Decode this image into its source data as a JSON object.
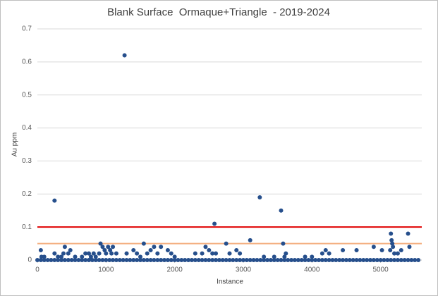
{
  "chart_data": {
    "type": "scatter",
    "title": "Blank Surface  Ormaque+Triangle  - 2019-2024",
    "x_label": "Instance",
    "y_label": "Au ppm",
    "xlim": [
      0,
      5600
    ],
    "xticks": [
      0,
      1000,
      2000,
      3000,
      4000,
      5000
    ],
    "ylim": [
      0,
      0.7
    ],
    "yticks": [
      0,
      0.1,
      0.2,
      0.3,
      0.4,
      0.5,
      0.6,
      0.7
    ],
    "grid": true,
    "reference_lines": [
      {
        "value": 0.1,
        "color": "#e00000"
      },
      {
        "value": 0.05,
        "color": "#f4b183"
      }
    ],
    "series": [
      {
        "color": "#264f8c",
        "x": [
          50,
          60,
          100,
          250,
          250,
          300,
          350,
          380,
          400,
          450,
          480,
          550,
          650,
          700,
          750,
          780,
          820,
          850,
          900,
          920,
          950,
          980,
          1000,
          1030,
          1060,
          1080,
          1100,
          1150,
          1270,
          1300,
          1400,
          1450,
          1500,
          1550,
          1600,
          1650,
          1700,
          1750,
          1800,
          1900,
          1950,
          2000,
          2300,
          2400,
          2450,
          2500,
          2550,
          2580,
          2600,
          2750,
          2800,
          2900,
          2950,
          3100,
          3240,
          3300,
          3450,
          3550,
          3580,
          3600,
          3620,
          3900,
          4000,
          4150,
          4200,
          4250,
          4450,
          4650,
          4900,
          5020,
          5150,
          5160,
          5170,
          5180,
          5140,
          5200,
          5250,
          5300,
          5400,
          5420,
          0,
          50,
          100,
          150,
          200,
          250,
          300,
          350,
          400,
          450,
          500,
          550,
          600,
          650,
          700,
          750,
          800,
          850,
          900,
          950,
          1000,
          1050,
          1100,
          1150,
          1200,
          1250,
          1300,
          1350,
          1400,
          1450,
          1500,
          1550,
          1600,
          1650,
          1700,
          1750,
          1800,
          1850,
          1900,
          1950,
          2000,
          2050,
          2100,
          2150,
          2200,
          2250,
          2300,
          2350,
          2400,
          2450,
          2500,
          2550,
          2600,
          2650,
          2700,
          2750,
          2800,
          2850,
          2900,
          2950,
          3000,
          3050,
          3100,
          3150,
          3200,
          3250,
          3300,
          3350,
          3400,
          3450,
          3500,
          3550,
          3600,
          3650,
          3700,
          3750,
          3800,
          3850,
          3900,
          3950,
          4000,
          4050,
          4100,
          4150,
          4200,
          4250,
          4300,
          4350,
          4400,
          4450,
          4500,
          4550,
          4600,
          4650,
          4700,
          4750,
          4800,
          4850,
          4900,
          4950,
          5000,
          5050,
          5100,
          5150,
          5200,
          5250,
          5300,
          5350,
          5400,
          5450,
          5500,
          5550
        ],
        "values": [
          0.03,
          0.01,
          0.01,
          0.18,
          0.02,
          0.01,
          0.01,
          0.02,
          0.04,
          0.02,
          0.03,
          0.01,
          0.01,
          0.02,
          0.02,
          0.01,
          0.02,
          0.01,
          0.02,
          0.05,
          0.04,
          0.03,
          0.02,
          0.04,
          0.03,
          0.02,
          0.04,
          0.02,
          0.62,
          0.02,
          0.03,
          0.02,
          0.01,
          0.05,
          0.02,
          0.03,
          0.04,
          0.02,
          0.04,
          0.03,
          0.02,
          0.01,
          0.02,
          0.02,
          0.04,
          0.03,
          0.02,
          0.11,
          0.02,
          0.05,
          0.02,
          0.03,
          0.02,
          0.06,
          0.19,
          0.01,
          0.01,
          0.15,
          0.05,
          0.01,
          0.02,
          0.01,
          0.01,
          0.02,
          0.03,
          0.02,
          0.03,
          0.03,
          0.04,
          0.03,
          0.08,
          0.06,
          0.05,
          0.04,
          0.03,
          0.02,
          0.02,
          0.03,
          0.08,
          0.04,
          0,
          0,
          0,
          0,
          0,
          0,
          0,
          0,
          0,
          0,
          0,
          0,
          0,
          0,
          0,
          0,
          0,
          0,
          0,
          0,
          0,
          0,
          0,
          0,
          0,
          0,
          0,
          0,
          0,
          0,
          0,
          0,
          0,
          0,
          0,
          0,
          0,
          0,
          0,
          0,
          0,
          0,
          0,
          0,
          0,
          0,
          0,
          0,
          0,
          0,
          0,
          0,
          0,
          0,
          0,
          0,
          0,
          0,
          0,
          0,
          0,
          0,
          0,
          0,
          0,
          0,
          0,
          0,
          0,
          0,
          0,
          0,
          0,
          0,
          0,
          0,
          0,
          0,
          0,
          0,
          0,
          0,
          0,
          0,
          0,
          0,
          0,
          0,
          0,
          0,
          0,
          0,
          0,
          0,
          0,
          0,
          0,
          0,
          0,
          0,
          0,
          0,
          0,
          0,
          0,
          0,
          0,
          0,
          0,
          0,
          0,
          0
        ]
      }
    ]
  }
}
